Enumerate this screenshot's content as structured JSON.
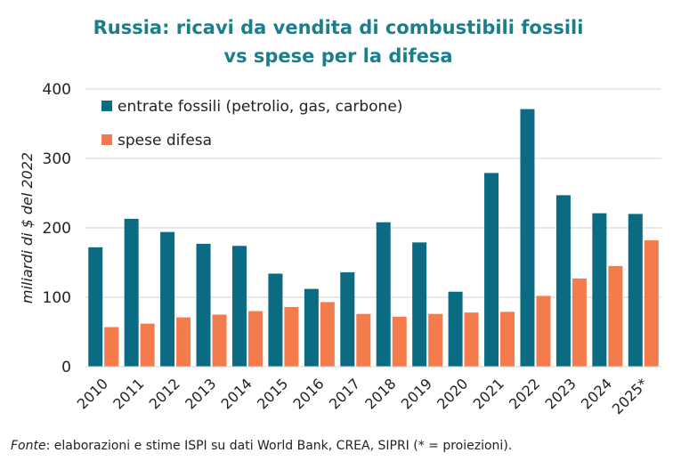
{
  "chart_data": {
    "type": "bar",
    "title_line1": "Russia: ricavi da vendita di combustibili fossili",
    "title_line2": "vs spese per la difesa",
    "xlabel": "",
    "ylabel": "miliardi di $ del 2022",
    "ylim": [
      0,
      400
    ],
    "yticks": [
      0,
      100,
      200,
      300,
      400
    ],
    "grid": true,
    "legend_position": "top-left",
    "categories": [
      "2010",
      "2011",
      "2012",
      "2013",
      "2014",
      "2015",
      "2016",
      "2017",
      "2018",
      "2019",
      "2020",
      "2021",
      "2022",
      "2023",
      "2024",
      "2025*"
    ],
    "series": [
      {
        "name": "entrate fossili (petrolio, gas, carbone)",
        "color": "#0a6b83",
        "values": [
          172,
          213,
          194,
          177,
          174,
          134,
          112,
          136,
          208,
          179,
          108,
          279,
          371,
          247,
          221,
          220
        ]
      },
      {
        "name": "spese difesa",
        "color": "#f47c4c",
        "values": [
          57,
          62,
          71,
          75,
          80,
          86,
          93,
          76,
          72,
          76,
          78,
          79,
          102,
          127,
          145,
          182
        ]
      }
    ],
    "title_color": "#1a7f8a",
    "source_label": "Fonte",
    "source_text": ": elaborazioni e stime ISPI su dati World Bank, CREA, SIPRI (* = proiezioni)."
  }
}
